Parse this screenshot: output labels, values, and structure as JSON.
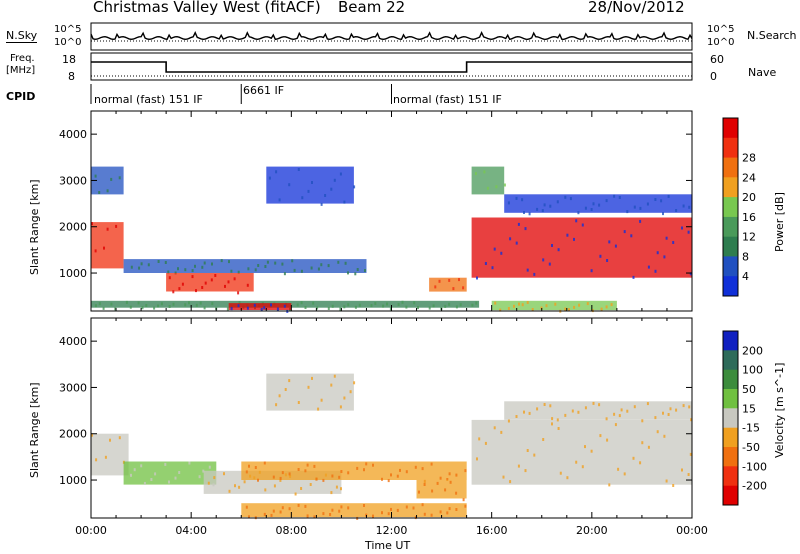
{
  "header": {
    "title": "Christmas Valley West (fitACF)",
    "beam": "Beam 22",
    "date": "28/Nov/2012"
  },
  "noise_panel": {
    "left_label": "N.Sky",
    "right_label": "N.Search",
    "tick_top": "10^5",
    "tick_bottom": "10^0"
  },
  "freq_panel": {
    "left_label_line1": "Freq.",
    "left_label_line2": "[MHz]",
    "right_label": "Nave",
    "left_ticks": [
      "18",
      "8"
    ],
    "right_ticks": [
      "60",
      "0"
    ]
  },
  "cpid": {
    "label": "CPID",
    "segments": [
      {
        "text": "normal (fast) 151 IF",
        "start_h": 0
      },
      {
        "text": "6661 IF",
        "start_h": 6
      },
      {
        "text": "normal (fast) 151 IF",
        "start_h": 12
      }
    ]
  },
  "colors": {
    "power": [
      "#1030d8",
      "#2050c0",
      "#2e7d4f",
      "#4a9a5a",
      "#78c850",
      "#f0a020",
      "#f07010",
      "#f03010",
      "#e00000"
    ],
    "velocity": [
      "#1020c0",
      "#2e6b5a",
      "#3c8c3c",
      "#70c040",
      "#c8c8c0",
      "#f0a020",
      "#f07010",
      "#f03010",
      "#e00000"
    ]
  },
  "chart_data": [
    {
      "type": "heatmap",
      "name": "power",
      "xlabel": "",
      "ylabel": "Slant Range [km]",
      "xlim_hours": [
        0,
        24
      ],
      "ylim": [
        180,
        4500
      ],
      "yticks": [
        1000,
        2000,
        3000,
        4000
      ],
      "colorbar_label": "Power [dB]",
      "colorbar_ticks": [
        "4",
        "8",
        "12",
        "16",
        "20",
        "24",
        "28"
      ],
      "features": [
        {
          "start_h": 0.0,
          "end_h": 1.3,
          "range_km": [
            1100,
            2100
          ],
          "level": 7
        },
        {
          "start_h": 0.0,
          "end_h": 1.3,
          "range_km": [
            2700,
            3300
          ],
          "level": 1
        },
        {
          "start_h": 1.3,
          "end_h": 11.0,
          "range_km": [
            1000,
            1300
          ],
          "level": 1
        },
        {
          "start_h": 3.0,
          "end_h": 6.5,
          "range_km": [
            600,
            1000
          ],
          "level": 7
        },
        {
          "start_h": 0.0,
          "end_h": 15.5,
          "range_km": [
            250,
            400
          ],
          "level": 2
        },
        {
          "start_h": 5.5,
          "end_h": 8.0,
          "range_km": [
            200,
            350
          ],
          "level": 8
        },
        {
          "start_h": 7.0,
          "end_h": 10.5,
          "range_km": [
            2500,
            3300
          ],
          "level": 0
        },
        {
          "start_h": 13.5,
          "end_h": 15.0,
          "range_km": [
            600,
            900
          ],
          "level": 6
        },
        {
          "start_h": 15.2,
          "end_h": 24.0,
          "range_km": [
            900,
            2200
          ],
          "level": 8
        },
        {
          "start_h": 15.2,
          "end_h": 16.5,
          "range_km": [
            2700,
            3300
          ],
          "level": 3
        },
        {
          "start_h": 16.5,
          "end_h": 24.0,
          "range_km": [
            2300,
            2700
          ],
          "level": 0
        },
        {
          "start_h": 16.0,
          "end_h": 21.0,
          "range_km": [
            200,
            400
          ],
          "level": 4
        }
      ]
    },
    {
      "type": "heatmap",
      "name": "velocity",
      "xlabel": "Time UT",
      "ylabel": "Slant Range [km]",
      "xlim_hours": [
        0,
        24
      ],
      "xticks": [
        "00:00",
        "04:00",
        "08:00",
        "12:00",
        "16:00",
        "20:00",
        "00:00"
      ],
      "ylim": [
        180,
        4500
      ],
      "yticks": [
        1000,
        2000,
        3000,
        4000
      ],
      "colorbar_label": "Velocity [m s^-1]",
      "colorbar_ticks": [
        "200",
        "100",
        "50",
        "15",
        "-15",
        "-50",
        "-100",
        "-200"
      ],
      "features": [
        {
          "start_h": 0.0,
          "end_h": 1.5,
          "range_km": [
            1100,
            2000
          ],
          "level": 4
        },
        {
          "start_h": 1.3,
          "end_h": 5.0,
          "range_km": [
            900,
            1400
          ],
          "level": 3
        },
        {
          "start_h": 4.5,
          "end_h": 10.0,
          "range_km": [
            700,
            1200
          ],
          "level": 4
        },
        {
          "start_h": 6.0,
          "end_h": 15.0,
          "range_km": [
            1000,
            1400
          ],
          "level": 5
        },
        {
          "start_h": 6.0,
          "end_h": 15.0,
          "range_km": [
            200,
            500
          ],
          "level": 5
        },
        {
          "start_h": 13.0,
          "end_h": 15.0,
          "range_km": [
            600,
            1000
          ],
          "level": 5
        },
        {
          "start_h": 15.2,
          "end_h": 24.0,
          "range_km": [
            900,
            2300
          ],
          "level": 4
        },
        {
          "start_h": 7.0,
          "end_h": 10.5,
          "range_km": [
            2500,
            3300
          ],
          "level": 4
        },
        {
          "start_h": 16.5,
          "end_h": 24.0,
          "range_km": [
            2300,
            2700
          ],
          "level": 4
        }
      ]
    }
  ]
}
